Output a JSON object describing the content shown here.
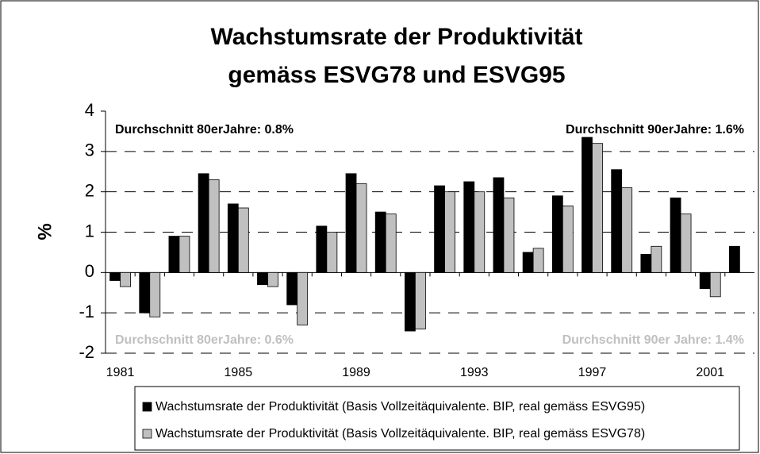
{
  "chart_data": {
    "type": "bar",
    "title": [
      "Wachstumsrate der Produktivität",
      "gemäss ESVG78 und ESVG95"
    ],
    "y_label": "%",
    "categories": [
      "1981",
      null,
      null,
      null,
      "1985",
      null,
      null,
      null,
      "1989",
      null,
      null,
      null,
      "1993",
      null,
      null,
      null,
      "1997",
      null,
      null,
      null,
      "2001",
      null
    ],
    "series": [
      {
        "name": "Wachstumsrate der Produktivität (Basis Vollzeitäquivalente. BIP, real gemäss ESVG95)",
        "color": "#000000",
        "values": [
          -0.2,
          -1.0,
          0.9,
          2.45,
          1.7,
          -0.3,
          -0.8,
          1.15,
          2.45,
          1.5,
          -1.45,
          2.15,
          2.25,
          2.35,
          0.5,
          1.9,
          3.35,
          2.55,
          0.45,
          1.85,
          -0.4,
          0.65
        ]
      },
      {
        "name": "Wachstumsrate der Produktivität (Basis Vollzeitäquivalente. BIP, real gemäss ESVG78)",
        "color": "#c0c0c0",
        "values": [
          -0.35,
          -1.1,
          0.9,
          2.3,
          1.6,
          -0.35,
          -1.3,
          1.0,
          2.2,
          1.45,
          -1.4,
          2.0,
          2.0,
          1.85,
          0.6,
          1.65,
          3.2,
          2.1,
          0.65,
          1.45,
          -0.6,
          null
        ]
      }
    ],
    "annotations": [
      {
        "text": "Durchschnitt 80erJahre: 0.8%",
        "color": "#000000"
      },
      {
        "text": "Durchschnitt 90erJahre: 1.6%",
        "color": "#000000"
      },
      {
        "text": "Durchschnitt 80erJahre: 0.6%",
        "color": "#c0c0c0"
      },
      {
        "text": "Durchschnitt 90er Jahre: 1.4%",
        "color": "#c0c0c0"
      }
    ],
    "ylim": [
      -2,
      4
    ],
    "yticks": [
      -2,
      -1,
      0,
      1,
      2,
      3,
      4
    ],
    "grid": true
  }
}
